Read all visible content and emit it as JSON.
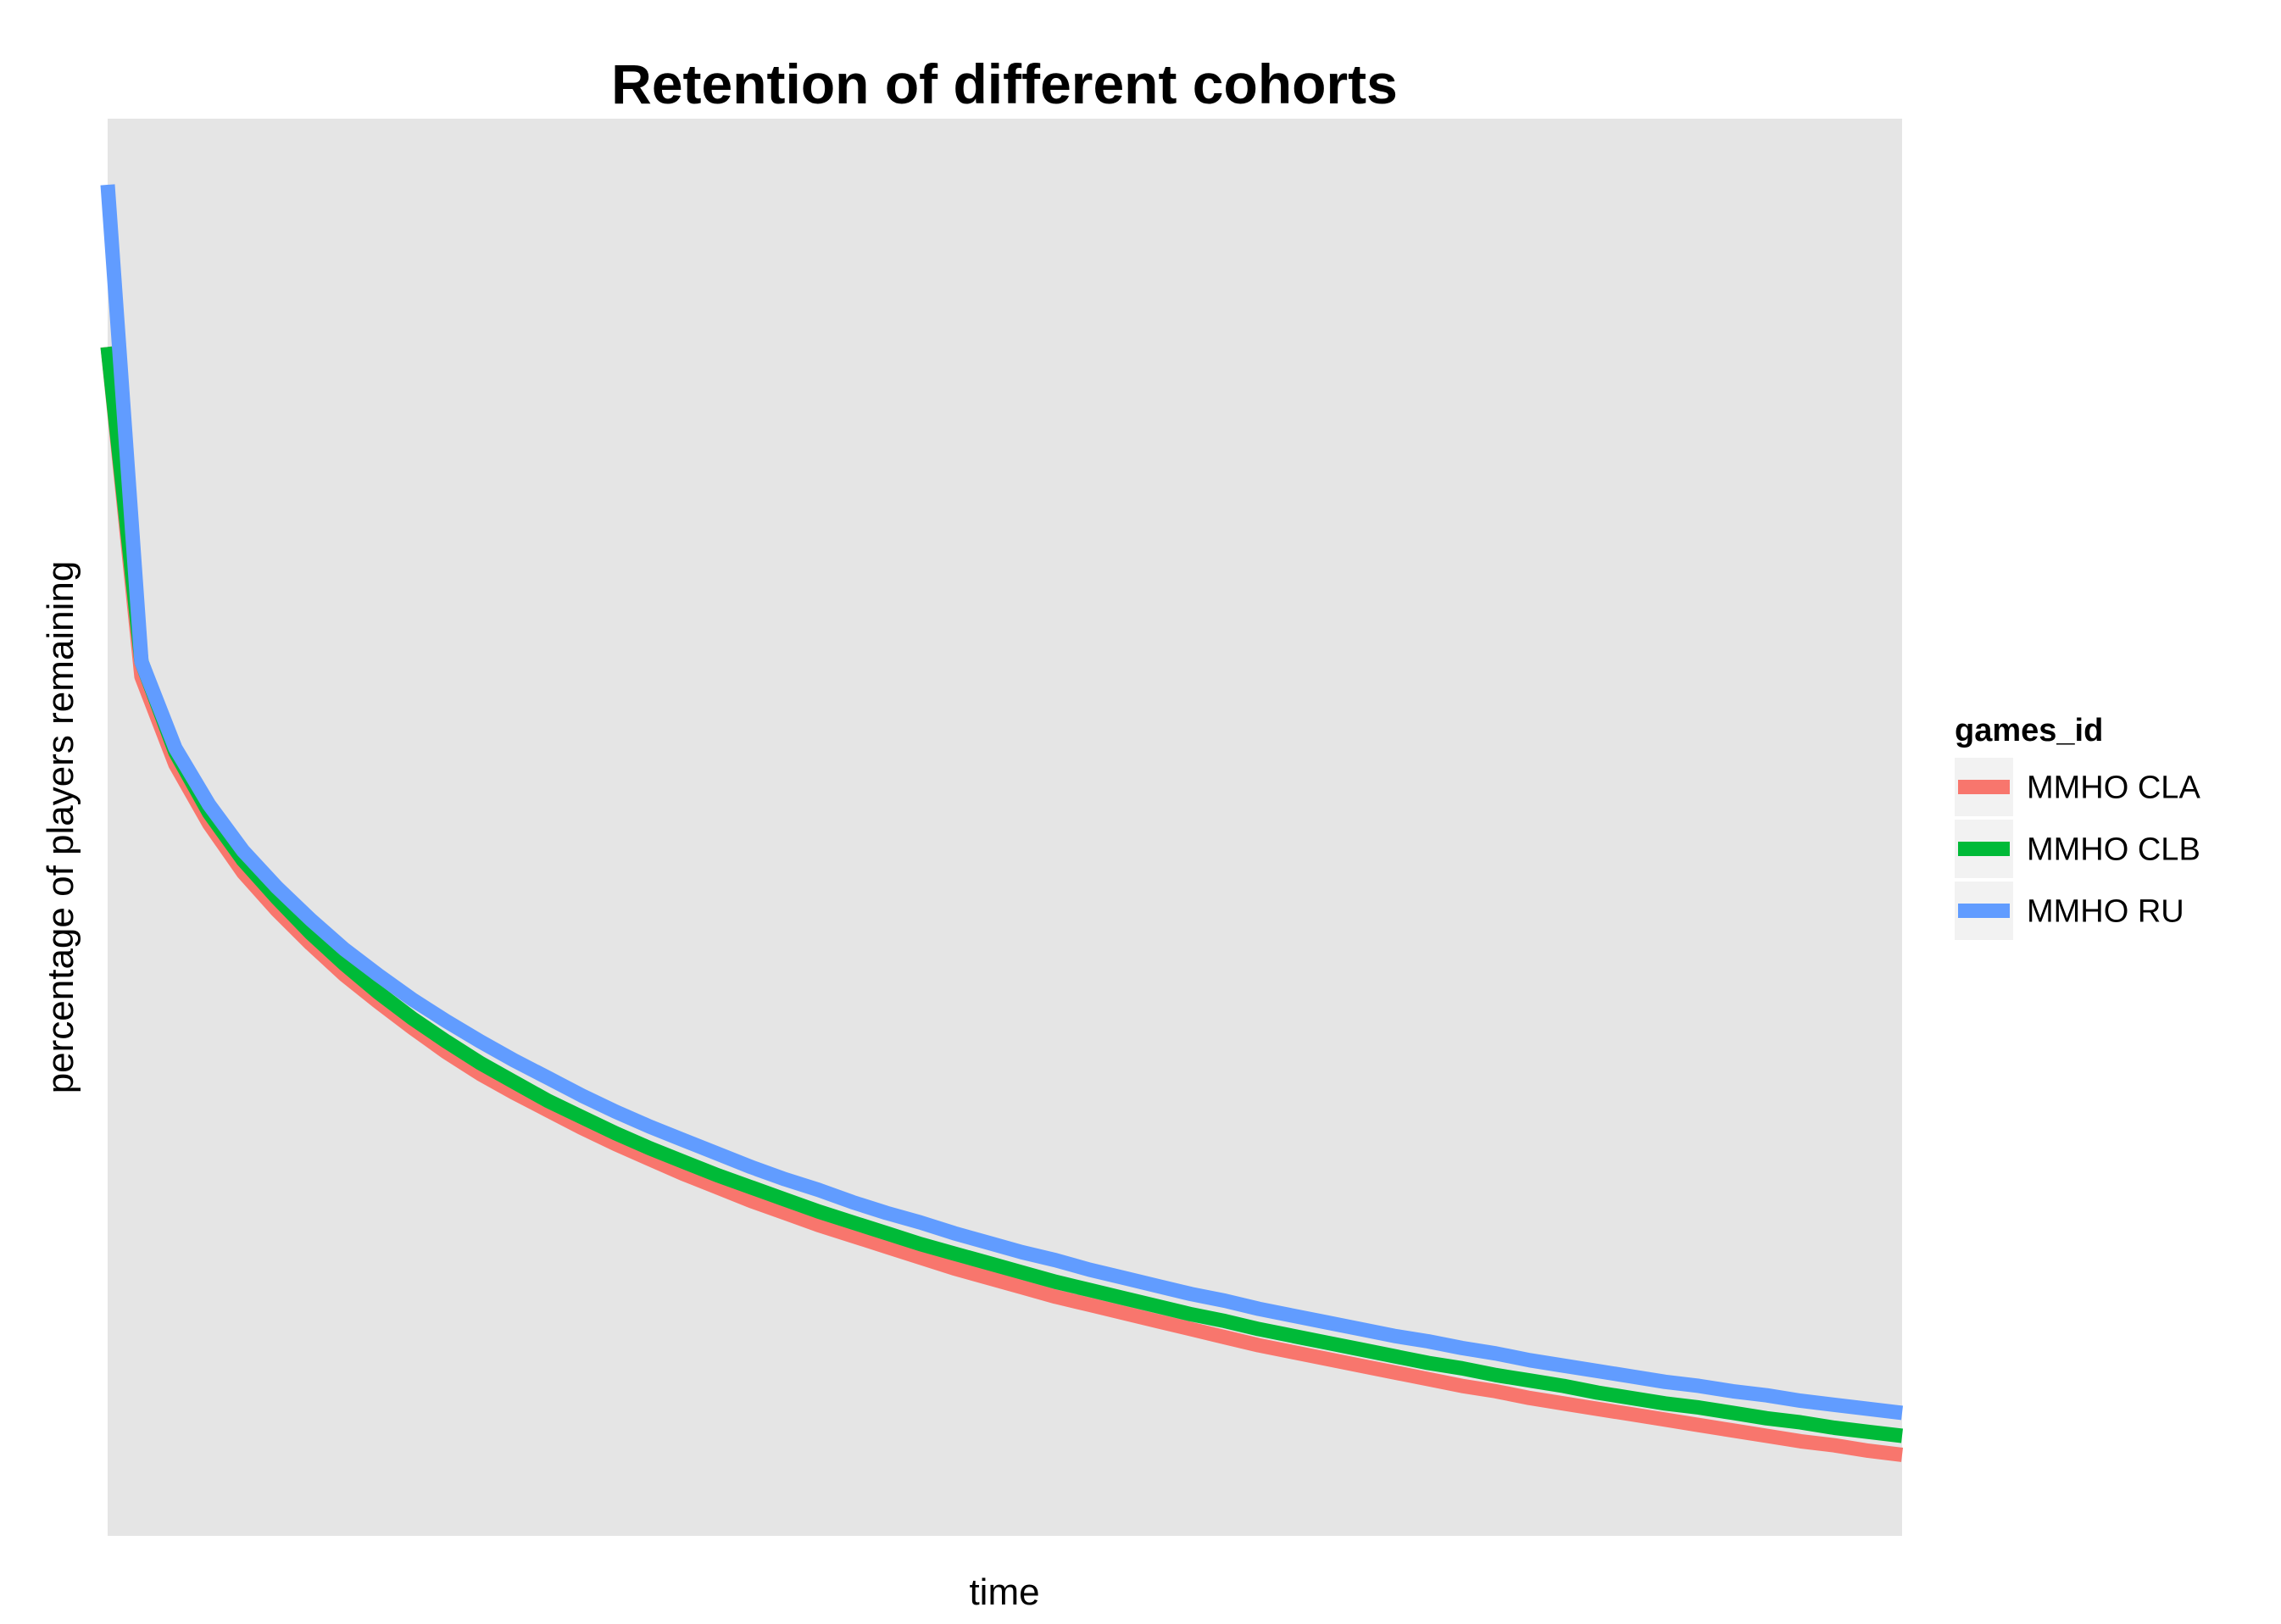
{
  "chart_data": {
    "type": "line",
    "title": "Retention of different cohorts",
    "xlabel": "time",
    "ylabel": "percentage of players remaining",
    "x_ticks_shown": false,
    "y_ticks_shown": false,
    "xlim": [
      1,
      54
    ],
    "ylim": [
      0,
      1
    ],
    "grid": false,
    "panel_background": "#e5e5e5",
    "legend": {
      "title": "games_id",
      "position": "right"
    },
    "x": [
      1,
      2,
      3,
      4,
      5,
      6,
      7,
      8,
      9,
      10,
      11,
      12,
      13,
      14,
      15,
      16,
      17,
      18,
      19,
      20,
      21,
      22,
      23,
      24,
      25,
      26,
      27,
      28,
      29,
      30,
      31,
      32,
      33,
      34,
      35,
      36,
      37,
      38,
      39,
      40,
      41,
      42,
      43,
      44,
      45,
      46,
      47,
      48,
      49,
      50,
      51,
      52,
      53,
      54
    ],
    "series": [
      {
        "name": "MMHO CLA",
        "color": "#f8766d",
        "values": [
          0.88,
          0.636,
          0.571,
          0.527,
          0.491,
          0.463,
          0.438,
          0.415,
          0.395,
          0.376,
          0.358,
          0.342,
          0.328,
          0.315,
          0.302,
          0.29,
          0.279,
          0.268,
          0.258,
          0.248,
          0.239,
          0.23,
          0.222,
          0.214,
          0.206,
          0.198,
          0.191,
          0.184,
          0.177,
          0.171,
          0.165,
          0.159,
          0.153,
          0.147,
          0.141,
          0.136,
          0.131,
          0.126,
          0.121,
          0.116,
          0.111,
          0.107,
          0.102,
          0.098,
          0.094,
          0.09,
          0.086,
          0.082,
          0.078,
          0.074,
          0.07,
          0.067,
          0.063,
          0.06
        ]
      },
      {
        "name": "MMHO CLB",
        "color": "#00ba38",
        "values": [
          0.88,
          0.647,
          0.58,
          0.535,
          0.5,
          0.472,
          0.446,
          0.423,
          0.402,
          0.383,
          0.366,
          0.35,
          0.336,
          0.322,
          0.31,
          0.298,
          0.287,
          0.277,
          0.267,
          0.258,
          0.249,
          0.24,
          0.232,
          0.224,
          0.216,
          0.209,
          0.202,
          0.195,
          0.188,
          0.182,
          0.176,
          0.17,
          0.164,
          0.159,
          0.153,
          0.148,
          0.143,
          0.138,
          0.133,
          0.128,
          0.124,
          0.119,
          0.115,
          0.111,
          0.106,
          0.102,
          0.098,
          0.095,
          0.091,
          0.087,
          0.084,
          0.08,
          0.077,
          0.074
        ]
      },
      {
        "name": "MMHO RU",
        "color": "#619cff",
        "values": [
          1.0,
          0.647,
          0.583,
          0.541,
          0.507,
          0.48,
          0.456,
          0.434,
          0.415,
          0.397,
          0.381,
          0.366,
          0.352,
          0.339,
          0.326,
          0.314,
          0.303,
          0.293,
          0.283,
          0.273,
          0.264,
          0.256,
          0.247,
          0.239,
          0.232,
          0.224,
          0.217,
          0.21,
          0.204,
          0.197,
          0.191,
          0.185,
          0.179,
          0.174,
          0.168,
          0.163,
          0.158,
          0.153,
          0.148,
          0.144,
          0.139,
          0.135,
          0.13,
          0.126,
          0.122,
          0.118,
          0.114,
          0.111,
          0.107,
          0.104,
          0.1,
          0.097,
          0.094,
          0.091
        ]
      }
    ]
  }
}
